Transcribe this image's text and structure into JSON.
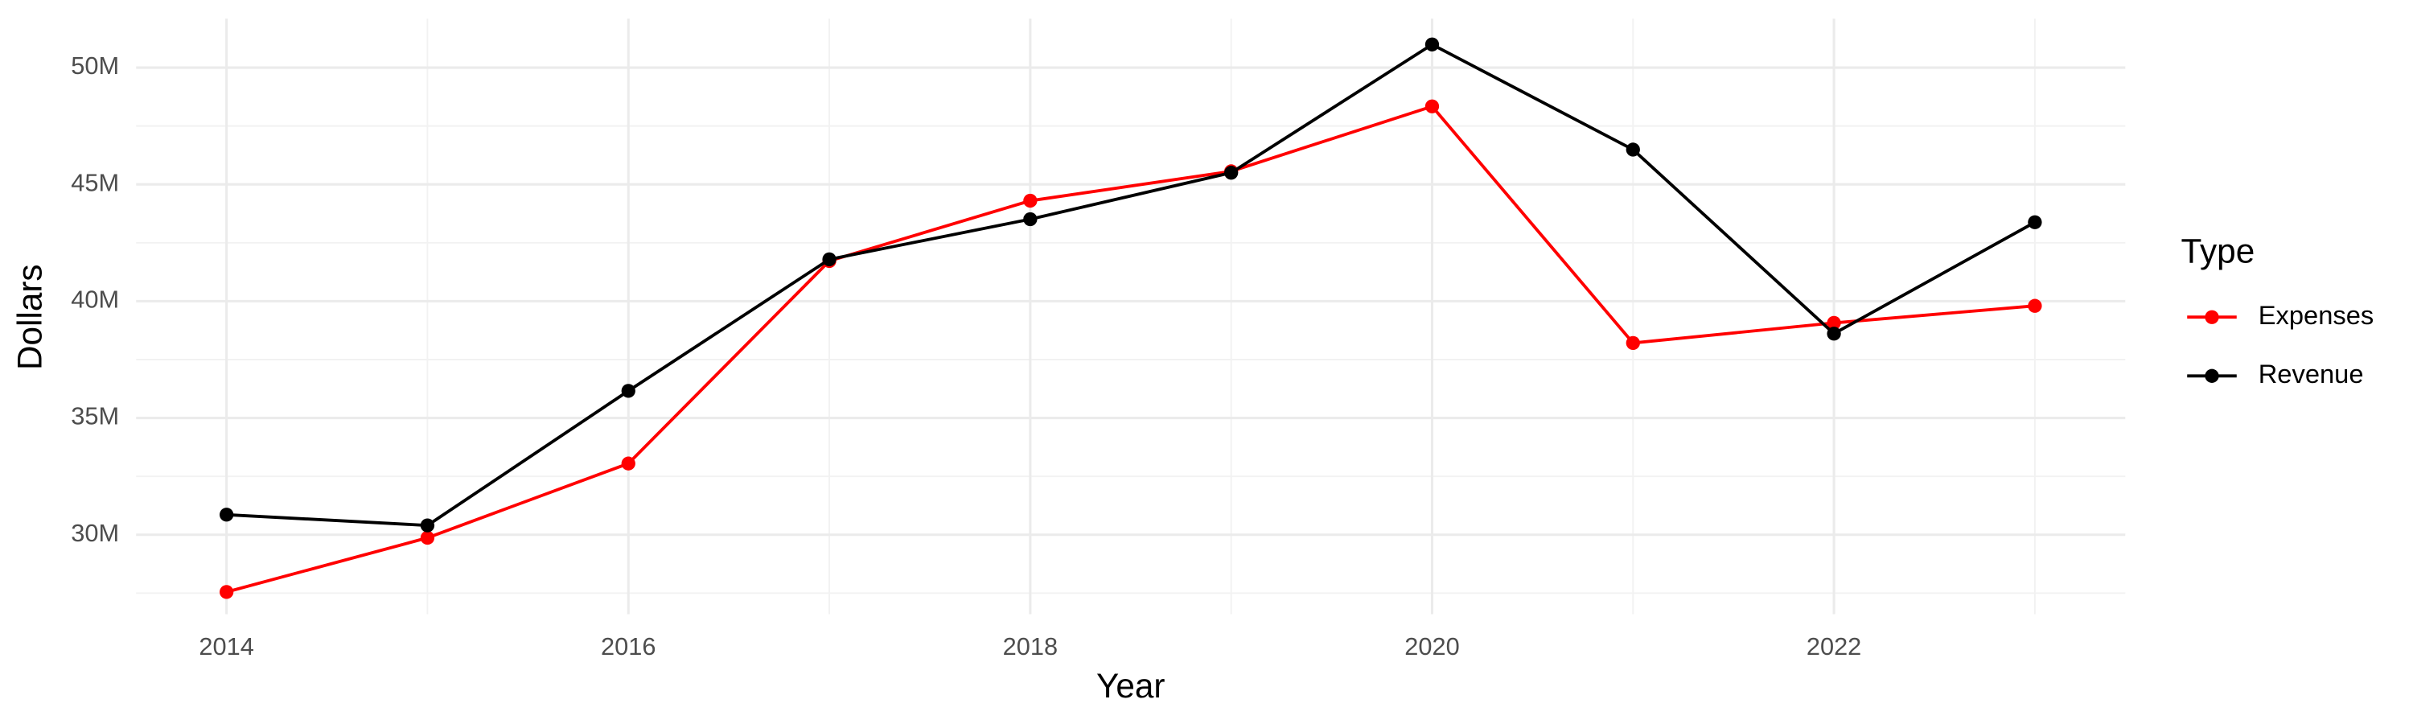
{
  "chart_data": {
    "type": "line",
    "x": [
      2014,
      2015,
      2016,
      2017,
      2018,
      2019,
      2020,
      2021,
      2022,
      2023
    ],
    "series": [
      {
        "name": "Expenses",
        "color": "#ff0000",
        "values": [
          27550000,
          29870000,
          33050000,
          41720000,
          44300000,
          45560000,
          48340000,
          38210000,
          39070000,
          39800000
        ]
      },
      {
        "name": "Revenue",
        "color": "#000000",
        "values": [
          30860000,
          30400000,
          36160000,
          41790000,
          43510000,
          45500000,
          50990000,
          46490000,
          38610000,
          43380000
        ]
      }
    ],
    "x_label": "Year",
    "y_label": "Dollars",
    "legend_title": "Type",
    "legend": "right",
    "xlim": [
      2013.55,
      2023.45
    ],
    "xticks": [
      2014,
      2016,
      2018,
      2020,
      2022
    ],
    "ylim": [
      26600000,
      52100000
    ],
    "yticks": [
      {
        "value": 30000000,
        "label": "30M"
      },
      {
        "value": 35000000,
        "label": "35M"
      },
      {
        "value": 40000000,
        "label": "40M"
      },
      {
        "value": 45000000,
        "label": "45M"
      },
      {
        "value": 50000000,
        "label": "50M"
      }
    ],
    "grid": true
  }
}
